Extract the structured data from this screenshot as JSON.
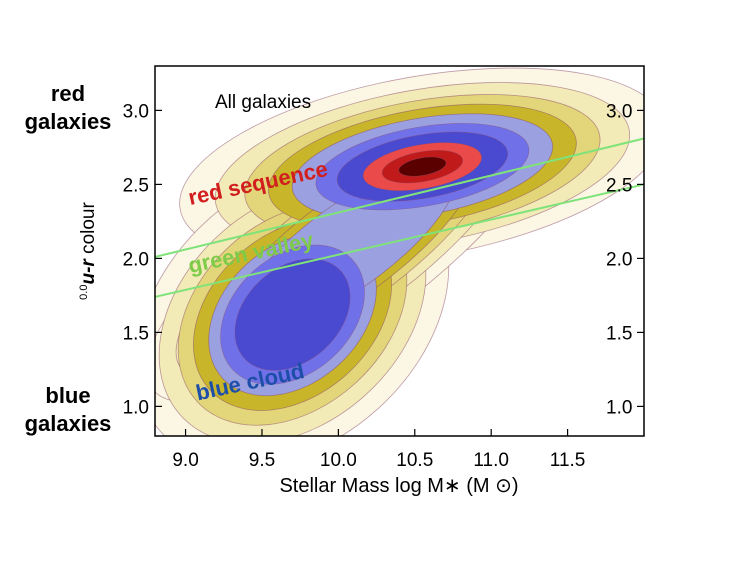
{
  "chart_data": {
    "type": "contour-density",
    "title": "All galaxies",
    "xlabel": "Stellar Mass log M∗ (M ⊙)",
    "ylabel": "0.0u-r colour",
    "ylabel_parts": {
      "superscript": "0.0",
      "variable": "u-r",
      "text": " colour"
    },
    "xlim": [
      8.8,
      12.0
    ],
    "ylim": [
      0.8,
      3.3
    ],
    "x_ticks": [
      9.0,
      9.5,
      10.0,
      10.5,
      11.0,
      11.5
    ],
    "x_tick_labels": [
      "9.0",
      "9.5",
      "10.0",
      "10.5",
      "11.0",
      "11.5"
    ],
    "y_ticks": [
      1.0,
      1.5,
      2.0,
      2.5,
      3.0
    ],
    "y_tick_labels": [
      "1.0",
      "1.5",
      "2.0",
      "2.5",
      "3.0"
    ],
    "density_peaks": [
      {
        "region": "red sequence",
        "x": 10.55,
        "y": 2.62
      },
      {
        "region": "blue cloud",
        "x": 9.7,
        "y": 1.62
      }
    ],
    "green_valley_boundaries": [
      {
        "x": [
          8.8,
          12.0
        ],
        "y": [
          2.01,
          2.81
        ]
      },
      {
        "x": [
          8.8,
          12.0
        ],
        "y": [
          1.74,
          2.5
        ]
      }
    ],
    "region_labels": [
      {
        "text": "red sequence",
        "x": 9.03,
        "y": 2.36,
        "angle_deg": -12,
        "color": "#d11f1f"
      },
      {
        "text": "green valley",
        "x": 9.03,
        "y": 1.9,
        "angle_deg": -12,
        "color": "#7ecb4a"
      },
      {
        "text": "blue cloud",
        "x": 9.08,
        "y": 1.04,
        "angle_deg": -12,
        "color": "#1d4fa8"
      }
    ],
    "grid": false,
    "legend": "none"
  },
  "side_labels": {
    "top": [
      "red",
      "galaxies"
    ],
    "bottom": [
      "blue",
      "galaxies"
    ]
  },
  "colors": {
    "contour_line": "#8a4a6a",
    "boundary_line": "#7fe37a",
    "fill_levels": [
      "#fbf7e4",
      "#f2eab7",
      "#e3d67a",
      "#c8b52a",
      "#9aa0e0",
      "#7070e8",
      "#4a4ad0",
      "#ea4a4a",
      "#c01a1a",
      "#5a0000"
    ]
  }
}
